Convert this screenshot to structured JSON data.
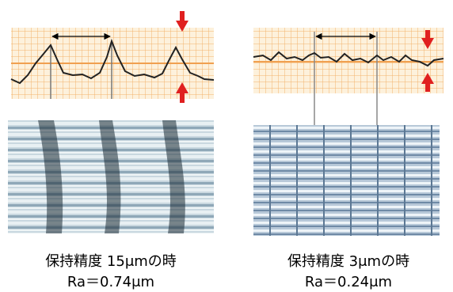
{
  "panels": [
    {
      "caption": "保持精度 15μmの時",
      "ra": "Ra＝0.74μm"
    },
    {
      "caption": "保持精度 3μmの時",
      "ra": "Ra＝0.24μm"
    }
  ]
}
